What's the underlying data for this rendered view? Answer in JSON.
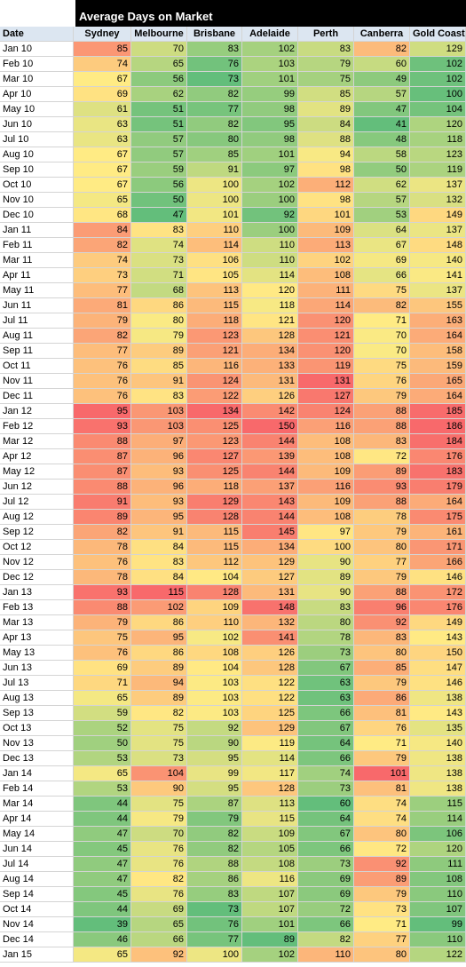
{
  "table": {
    "title": "Average Days on Market",
    "columns": [
      "Date",
      "Sydney",
      "Melbourne",
      "Brisbane",
      "Adelaide",
      "Perth",
      "Canberra",
      "Gold Coast"
    ],
    "color_scale": [
      "#63be7b",
      "#ffeb84",
      "#f8696b"
    ],
    "rows": [
      [
        "Jan 10",
        85,
        70,
        83,
        102,
        83,
        82,
        129
      ],
      [
        "Feb 10",
        74,
        65,
        76,
        103,
        79,
        60,
        102
      ],
      [
        "Mar 10",
        67,
        56,
        73,
        101,
        75,
        49,
        102
      ],
      [
        "Apr 10",
        69,
        62,
        82,
        99,
        85,
        57,
        100
      ],
      [
        "May 10",
        61,
        51,
        77,
        98,
        89,
        47,
        104
      ],
      [
        "Jun 10",
        63,
        51,
        82,
        95,
        84,
        41,
        120
      ],
      [
        "Jul 10",
        63,
        57,
        80,
        98,
        88,
        48,
        118
      ],
      [
        "Aug 10",
        67,
        57,
        85,
        101,
        94,
        58,
        123
      ],
      [
        "Sep 10",
        67,
        59,
        91,
        97,
        98,
        50,
        119
      ],
      [
        "Oct 10",
        67,
        56,
        100,
        102,
        112,
        62,
        137
      ],
      [
        "Nov 10",
        65,
        50,
        100,
        100,
        98,
        57,
        132
      ],
      [
        "Dec 10",
        68,
        47,
        101,
        92,
        101,
        53,
        149
      ],
      [
        "Jan 11",
        84,
        83,
        110,
        100,
        109,
        64,
        137
      ],
      [
        "Feb 11",
        82,
        74,
        114,
        110,
        113,
        67,
        148
      ],
      [
        "Mar 11",
        74,
        73,
        106,
        110,
        102,
        69,
        140
      ],
      [
        "Apr 11",
        73,
        71,
        105,
        114,
        108,
        66,
        141
      ],
      [
        "May 11",
        77,
        68,
        113,
        120,
        111,
        75,
        137
      ],
      [
        "Jun 11",
        81,
        86,
        115,
        118,
        114,
        82,
        155
      ],
      [
        "Jul 11",
        79,
        80,
        118,
        121,
        120,
        71,
        163
      ],
      [
        "Aug 11",
        82,
        79,
        123,
        128,
        121,
        70,
        164
      ],
      [
        "Sep 11",
        77,
        89,
        121,
        134,
        120,
        70,
        158
      ],
      [
        "Oct 11",
        76,
        85,
        116,
        133,
        119,
        75,
        159
      ],
      [
        "Nov 11",
        76,
        91,
        124,
        131,
        131,
        76,
        165
      ],
      [
        "Dec 11",
        76,
        83,
        122,
        126,
        127,
        79,
        164
      ],
      [
        "Jan 12",
        95,
        103,
        134,
        142,
        124,
        88,
        185
      ],
      [
        "Feb 12",
        93,
        103,
        125,
        150,
        116,
        88,
        186
      ],
      [
        "Mar 12",
        88,
        97,
        123,
        144,
        108,
        83,
        184
      ],
      [
        "Apr 12",
        87,
        96,
        127,
        139,
        108,
        72,
        176
      ],
      [
        "May 12",
        87,
        93,
        125,
        144,
        109,
        89,
        183
      ],
      [
        "Jun 12",
        88,
        96,
        118,
        137,
        116,
        93,
        179
      ],
      [
        "Jul 12",
        91,
        93,
        129,
        143,
        109,
        88,
        164
      ],
      [
        "Aug 12",
        89,
        95,
        128,
        144,
        108,
        78,
        175
      ],
      [
        "Sep 12",
        82,
        91,
        115,
        145,
        97,
        79,
        161
      ],
      [
        "Oct 12",
        78,
        84,
        115,
        134,
        100,
        80,
        171
      ],
      [
        "Nov 12",
        76,
        83,
        112,
        129,
        90,
        77,
        166
      ],
      [
        "Dec 12",
        78,
        84,
        104,
        127,
        89,
        79,
        146
      ],
      [
        "Jan 13",
        93,
        115,
        128,
        131,
        90,
        88,
        172
      ],
      [
        "Feb 13",
        88,
        102,
        109,
        148,
        83,
        96,
        176
      ],
      [
        "Mar 13",
        79,
        86,
        110,
        132,
        80,
        92,
        149
      ],
      [
        "Apr 13",
        75,
        95,
        102,
        141,
        78,
        83,
        143
      ],
      [
        "May 13",
        76,
        86,
        108,
        126,
        73,
        80,
        150
      ],
      [
        "Jun 13",
        69,
        89,
        104,
        128,
        67,
        85,
        147
      ],
      [
        "Jul 13",
        71,
        94,
        103,
        122,
        63,
        79,
        146
      ],
      [
        "Aug 13",
        65,
        89,
        103,
        122,
        63,
        86,
        138
      ],
      [
        "Sep 13",
        59,
        82,
        103,
        125,
        66,
        81,
        143
      ],
      [
        "Oct 13",
        52,
        75,
        92,
        129,
        67,
        76,
        135
      ],
      [
        "Nov 13",
        50,
        75,
        90,
        119,
        64,
        71,
        140
      ],
      [
        "Dec 13",
        53,
        73,
        95,
        114,
        66,
        79,
        138
      ],
      [
        "Jan 14",
        65,
        104,
        99,
        117,
        74,
        101,
        138
      ],
      [
        "Feb 14",
        53,
        90,
        95,
        128,
        73,
        81,
        138
      ],
      [
        "Mar 14",
        44,
        75,
        87,
        113,
        60,
        74,
        115
      ],
      [
        "Apr 14",
        44,
        79,
        79,
        115,
        64,
        74,
        114
      ],
      [
        "May 14",
        47,
        70,
        82,
        109,
        67,
        80,
        106
      ],
      [
        "Jun 14",
        45,
        76,
        82,
        105,
        66,
        72,
        120
      ],
      [
        "Jul 14",
        47,
        76,
        88,
        108,
        73,
        92,
        111
      ],
      [
        "Aug 14",
        47,
        82,
        86,
        116,
        69,
        89,
        108
      ],
      [
        "Sep 14",
        45,
        76,
        83,
        107,
        69,
        79,
        110
      ],
      [
        "Oct 14",
        44,
        69,
        73,
        107,
        72,
        73,
        107
      ],
      [
        "Nov 14",
        39,
        65,
        76,
        101,
        66,
        71,
        99
      ],
      [
        "Dec 14",
        46,
        66,
        77,
        89,
        82,
        77,
        110
      ],
      [
        "Jan 15",
        65,
        92,
        100,
        102,
        110,
        80,
        122
      ]
    ]
  }
}
